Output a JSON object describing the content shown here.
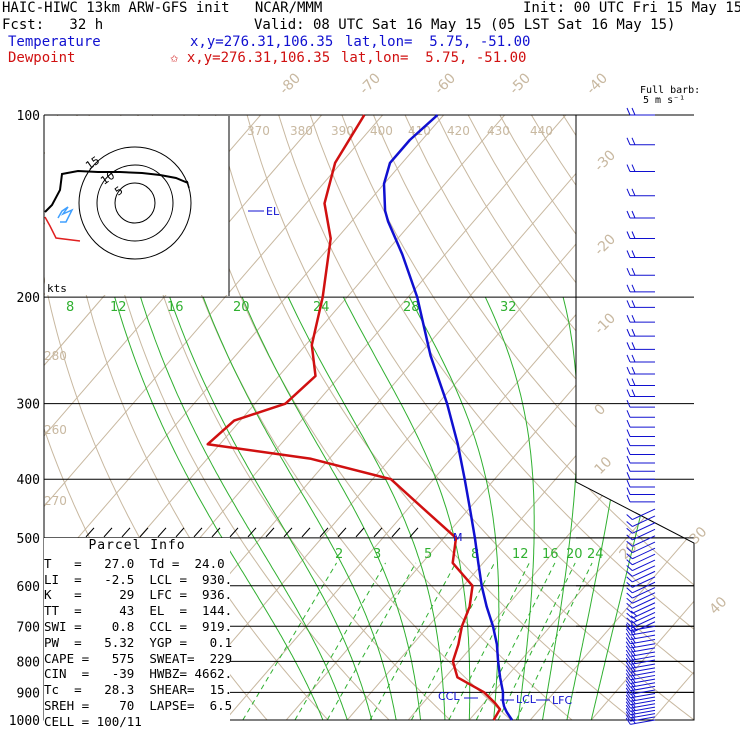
{
  "header": {
    "title": "HAIC-HIWC 13km ARW-GFS init   NCAR/MMM",
    "init": "Init: 00 UTC Fri 15 May 15",
    "fcst": "Fcst:   32 h",
    "valid": "Valid: 08 UTC Sat 16 May 15 (05 LST Sat 16 May 15)",
    "temp_label": "Temperature",
    "temp_xy": "x,y=276.31,106.35",
    "temp_latlon": "lat,lon=  5.75, -51.00",
    "dew_label": "Dewpoint",
    "dew_xy": "✩ x,y=276.31,106.35",
    "dew_latlon": "lat,lon=  5.75, -51.00"
  },
  "barb_legend": {
    "line1": "Full barb:",
    "line2": "5 m s⁻¹"
  },
  "hodograph": {
    "units": "kts",
    "ring_labels": [
      "5",
      "10",
      "15"
    ]
  },
  "parcel": {
    "title": "Parcel Info",
    "rows": [
      "T   =   27.0  Td =  24.0",
      "LI  =   -2.5  LCL =  930.",
      "K   =     29  LFC =  936.",
      "TT  =     43  EL  =  144.",
      "SWI =    0.8  CCL =  919.",
      "PW  =   5.32  YGP =   0.1",
      "CAPE =   575  SWEAT=  229",
      "CIN  =   -39  HWBZ= 4662.",
      "Tc  =   28.3  SHEAR=  15.",
      "SREH =    70  LAPSE=  6.5",
      "CELL = 100/11"
    ]
  },
  "chart_data": {
    "type": "line",
    "subtype": "skew-T log-p sounding",
    "yaxis": {
      "label": "pressure (hPa)",
      "log": true,
      "ticks": [
        100,
        200,
        300,
        400,
        500,
        600,
        700,
        800,
        900,
        1000
      ],
      "ylim": [
        1000,
        100
      ]
    },
    "isotherm_labels": [
      "-80",
      "-70",
      "-60",
      "-50",
      "-40",
      "-30",
      "-20",
      "-10",
      "0",
      "10",
      "20",
      "30",
      "40"
    ],
    "theta_labels": [
      "370",
      "380",
      "390",
      "400",
      "410",
      "420",
      "430",
      "440",
      "280",
      "260",
      "270"
    ],
    "theta_e_labels": [
      "8",
      "12",
      "16",
      "20",
      "24",
      "28",
      "32"
    ],
    "mixing_ratio_labels": [
      "2",
      "3",
      "5",
      "8",
      "12",
      "16",
      "20",
      "24"
    ],
    "markers": [
      "EL",
      "M",
      "CCL",
      "LCL",
      "LFC"
    ],
    "series": [
      {
        "name": "Temperature",
        "color": "#1010d0",
        "points": [
          [
            1000,
            27.0
          ],
          [
            970,
            25.0
          ],
          [
            950,
            23.8
          ],
          [
            930,
            22.8
          ],
          [
            900,
            21.6
          ],
          [
            850,
            19.0
          ],
          [
            800,
            16.4
          ],
          [
            750,
            13.8
          ],
          [
            700,
            10.6
          ],
          [
            650,
            6.8
          ],
          [
            600,
            3.0
          ],
          [
            550,
            -0.8
          ],
          [
            500,
            -4.9
          ],
          [
            450,
            -9.6
          ],
          [
            400,
            -14.9
          ],
          [
            350,
            -21.0
          ],
          [
            300,
            -28.5
          ],
          [
            250,
            -38.0
          ],
          [
            200,
            -48.5
          ],
          [
            170,
            -57.0
          ],
          [
            150,
            -64.0
          ],
          [
            144,
            -66.0
          ],
          [
            130,
            -70.0
          ],
          [
            120,
            -72.0
          ],
          [
            110,
            -72.0
          ],
          [
            100,
            -71.0
          ]
        ]
      },
      {
        "name": "Dewpoint",
        "color": "#d01010",
        "points": [
          [
            1000,
            24.0
          ],
          [
            960,
            23.5
          ],
          [
            940,
            22.0
          ],
          [
            900,
            18.5
          ],
          [
            850,
            12.0
          ],
          [
            800,
            9.0
          ],
          [
            750,
            7.5
          ],
          [
            700,
            5.5
          ],
          [
            650,
            4.0
          ],
          [
            600,
            1.5
          ],
          [
            550,
            -5.0
          ],
          [
            500,
            -8.0
          ],
          [
            450,
            -17.0
          ],
          [
            400,
            -27.0
          ],
          [
            370,
            -43.0
          ],
          [
            350,
            -62.0
          ],
          [
            320,
            -61.0
          ],
          [
            300,
            -55.0
          ],
          [
            270,
            -54.0
          ],
          [
            240,
            -59.0
          ],
          [
            200,
            -64.0
          ],
          [
            160,
            -71.0
          ],
          [
            140,
            -77.0
          ],
          [
            120,
            -81.0
          ],
          [
            100,
            -83.0
          ]
        ]
      }
    ],
    "wind_barbs": "right-side column, kts direction shown graphically"
  }
}
